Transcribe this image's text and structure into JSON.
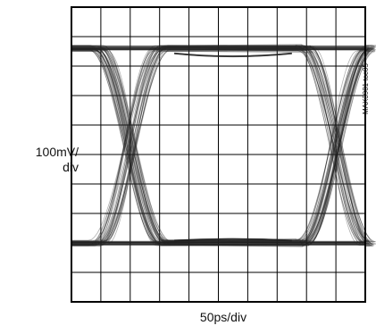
{
  "labels": {
    "vertical_scale": [
      "100mV/",
      "div"
    ],
    "horizontal_scale": "50ps/div",
    "figure_tag": "MAX3981 toc05"
  },
  "chart_data": {
    "type": "eye-diagram",
    "title": "",
    "xlabel": "50ps/div",
    "ylabel": "100mV/div",
    "grid": true,
    "divisions": {
      "x": 10,
      "y": 10
    },
    "time_per_div_ps": 50,
    "voltage_per_div_mV": 100,
    "xlim_div": [
      0,
      10
    ],
    "ylim_div": [
      0,
      10
    ],
    "levels_div": {
      "logic_high": 8.6,
      "logic_low": 2.0
    },
    "crossings_div": [
      {
        "time": 2.0,
        "level": 5.3
      },
      {
        "time": 9.0,
        "level": 5.3
      }
    ],
    "amplitude_mV": 660,
    "trace_color": "#222222",
    "grid_color": "#000000"
  }
}
